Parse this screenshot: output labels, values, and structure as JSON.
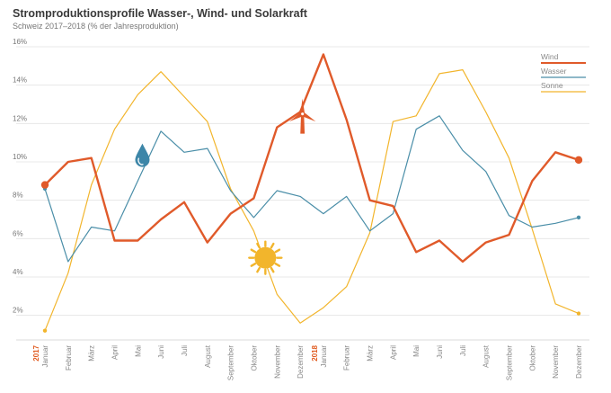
{
  "title": "Stromproduktionsprofile Wasser-, Wind- und Solarkraft",
  "subtitle": "Schweiz 2017–2018 (% der Jahresproduktion)",
  "chart_data": {
    "type": "line",
    "title": "Stromproduktionsprofile Wasser-, Wind- und Solarkraft",
    "subtitle": "Schweiz 2017–2018 (% der Jahresproduktion)",
    "categories": [
      "Januar",
      "Februar",
      "März",
      "April",
      "Mai",
      "Juni",
      "Juli",
      "August",
      "September",
      "Oktober",
      "November",
      "Dezember",
      "Januar",
      "Februar",
      "März",
      "April",
      "Mai",
      "Juni",
      "Juli",
      "August",
      "September",
      "Oktober",
      "November",
      "Dezember"
    ],
    "year_labels": [
      {
        "label": "2017",
        "index": 0
      },
      {
        "label": "2018",
        "index": 12
      }
    ],
    "ylim": [
      1,
      16
    ],
    "yticks": [
      2,
      4,
      6,
      8,
      10,
      12,
      14,
      16
    ],
    "ytick_labels": [
      "2%",
      "4%",
      "6%",
      "8%",
      "10%",
      "12%",
      "14%",
      "16%"
    ],
    "grid": true,
    "legend_position": "top-right",
    "series": [
      {
        "name": "Wind",
        "color": "#e05a2a",
        "values": [
          8.8,
          10.0,
          10.2,
          5.9,
          5.9,
          7.0,
          7.9,
          5.8,
          7.3,
          8.1,
          11.8,
          12.6,
          15.6,
          12.2,
          8.0,
          7.7,
          5.3,
          5.9,
          4.8,
          5.8,
          6.2,
          9.0,
          10.5,
          10.1
        ]
      },
      {
        "name": "Wasser",
        "color": "#4a8ea8",
        "values": [
          8.6,
          4.8,
          6.6,
          6.4,
          9.0,
          11.6,
          10.5,
          10.7,
          8.5,
          7.1,
          8.5,
          8.2,
          7.3,
          8.2,
          6.4,
          7.3,
          11.7,
          12.4,
          10.6,
          9.5,
          7.2,
          6.6,
          6.8,
          7.1
        ]
      },
      {
        "name": "Sonne",
        "color": "#f2b52c",
        "values": [
          1.2,
          4.2,
          8.8,
          11.7,
          13.5,
          14.7,
          13.4,
          12.1,
          8.6,
          6.4,
          3.1,
          1.6,
          2.4,
          3.5,
          6.3,
          12.1,
          12.4,
          14.6,
          14.8,
          12.6,
          10.2,
          6.5,
          2.6,
          2.1
        ]
      }
    ],
    "icons": [
      {
        "name": "wind-turbine-icon",
        "x_index": 11.1,
        "y": 12.5
      },
      {
        "name": "water-drop-icon",
        "x_index": 4.2,
        "y": 10.3
      },
      {
        "name": "sun-icon",
        "x_index": 9.5,
        "y": 5.0
      }
    ]
  }
}
